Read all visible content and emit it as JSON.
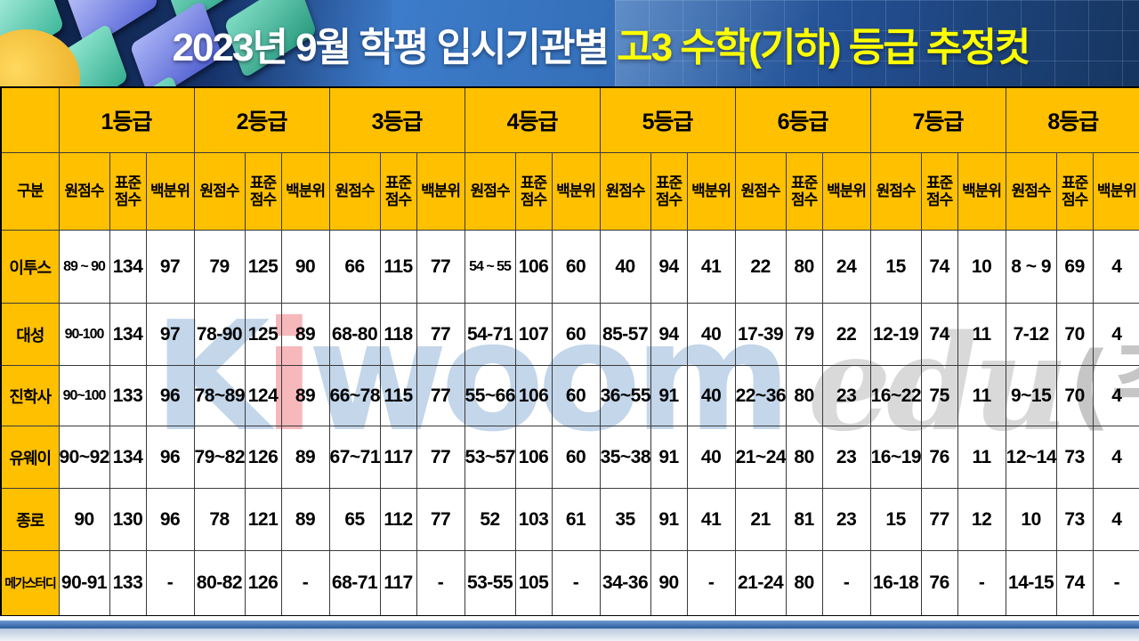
{
  "title": {
    "prefix": "2023년 9월 학평 입시기관별 ",
    "highlight": "고3 수학(기하) 등급 추정컷"
  },
  "table": {
    "corner_label": "구분",
    "grade_headers": [
      "1등급",
      "2등급",
      "3등급",
      "4등급",
      "5등급",
      "6등급",
      "7등급",
      "8등급"
    ],
    "sub_headers": [
      "원점수",
      "표준\n점수",
      "백분위"
    ],
    "rows": [
      {
        "name": "이투스",
        "cells": [
          "89 ~ 90",
          "134",
          "97",
          "79",
          "125",
          "90",
          "66",
          "115",
          "77",
          "54 ~ 55",
          "106",
          "60",
          "40",
          "94",
          "41",
          "22",
          "80",
          "24",
          "15",
          "74",
          "10",
          "8 ~ 9",
          "69",
          "4"
        ]
      },
      {
        "name": "대성",
        "cells": [
          "90-100",
          "134",
          "97",
          "78-90",
          "125",
          "89",
          "68-80",
          "118",
          "77",
          "54-71",
          "107",
          "60",
          "85-57",
          "94",
          "40",
          "17-39",
          "79",
          "22",
          "12-19",
          "74",
          "11",
          "7-12",
          "70",
          "4"
        ]
      },
      {
        "name": "진학사",
        "cells": [
          "90~100",
          "133",
          "96",
          "78~89",
          "124",
          "89",
          "66~78",
          "115",
          "77",
          "55~66",
          "106",
          "60",
          "36~55",
          "91",
          "40",
          "22~36",
          "80",
          "23",
          "16~22",
          "75",
          "11",
          "9~15",
          "70",
          "4"
        ]
      },
      {
        "name": "유웨이",
        "cells": [
          "90~92",
          "134",
          "96",
          "79~82",
          "126",
          "89",
          "67~71",
          "117",
          "77",
          "53~57",
          "106",
          "60",
          "35~38",
          "91",
          "40",
          "21~24",
          "80",
          "23",
          "16~19",
          "76",
          "11",
          "12~14",
          "73",
          "4"
        ]
      },
      {
        "name": "종로",
        "cells": [
          "90",
          "130",
          "96",
          "78",
          "121",
          "89",
          "65",
          "112",
          "77",
          "52",
          "103",
          "61",
          "35",
          "91",
          "41",
          "21",
          "81",
          "23",
          "15",
          "77",
          "12",
          "10",
          "73",
          "4"
        ]
      },
      {
        "name": "메가스터디",
        "cells": [
          "90-91",
          "133",
          "-",
          "80-82",
          "126",
          "-",
          "68-71",
          "117",
          "-",
          "53-55",
          "105",
          "-",
          "34-36",
          "90",
          "-",
          "21-24",
          "80",
          "-",
          "16-18",
          "76",
          "-",
          "14-15",
          "74",
          "-"
        ]
      }
    ]
  },
  "watermark": {
    "k": "K",
    "i": "i",
    "rest": "woom",
    "edu": "edu",
    "suffix": "(주)"
  },
  "colors": {
    "header_bg": "#FFC000",
    "title_highlight": "#FFFF00",
    "banner_blue": "#3570BA",
    "watermark_blue": "#C3D6EA",
    "watermark_red": "#F6B8BB"
  }
}
